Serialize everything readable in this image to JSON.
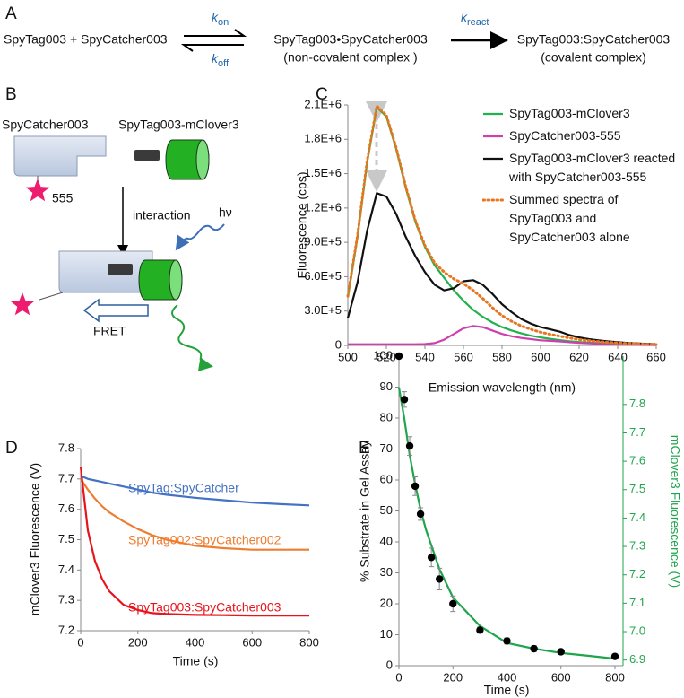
{
  "panel_labels": [
    "A",
    "B",
    "C",
    "D",
    "E"
  ],
  "scheme": {
    "reactants": "SpyTag003 + SpyCatcher003",
    "k_on": {
      "symbol": "k",
      "sub": "on"
    },
    "k_off": {
      "symbol": "k",
      "sub": "off"
    },
    "k_react": {
      "symbol": "k",
      "sub": "react"
    },
    "noncovalent": "SpyTag003•SpyCatcher003",
    "noncovalent_note": "(non-covalent complex )",
    "covalent": "SpyTag003:SpyCatcher003",
    "covalent_note": "(covalent complex)"
  },
  "diagram": {
    "catcher_label": "SpyCatcher003",
    "tag_label": "SpyTag003-mClover3",
    "dye": "555",
    "step": "interaction",
    "light": "hν",
    "fret": "FRET"
  },
  "chart_data": [
    {
      "type": "line",
      "xlabel": "Emission wavelength (nm)",
      "ylabel": "Fluorescence (cps)",
      "x": [
        500,
        505,
        510,
        515,
        520,
        525,
        530,
        535,
        540,
        545,
        550,
        555,
        560,
        565,
        570,
        575,
        580,
        585,
        590,
        595,
        600,
        605,
        610,
        615,
        620,
        625,
        630,
        635,
        640,
        645,
        650,
        655,
        660
      ],
      "series": [
        {
          "name": "SpyTag003-mClover3",
          "color": "#22b14c",
          "style": "solid",
          "values": [
            420000,
            950000,
            1600000,
            2080000,
            2000000,
            1720000,
            1380000,
            1080000,
            860000,
            700000,
            590000,
            480000,
            390000,
            310000,
            250000,
            200000,
            160000,
            130000,
            105000,
            85000,
            70000,
            57000,
            46000,
            37000,
            30000,
            24000,
            20000,
            16000,
            13000,
            10000,
            8000,
            6000,
            5000
          ]
        },
        {
          "name": "SpyCatcher003-555",
          "color": "#cf3fae",
          "style": "solid",
          "values": [
            10000,
            10000,
            10000,
            10000,
            10000,
            10000,
            10000,
            10000,
            12000,
            20000,
            50000,
            100000,
            150000,
            170000,
            160000,
            130000,
            100000,
            80000,
            65000,
            55000,
            45000,
            40000,
            35000,
            28000,
            22000,
            18000,
            14000,
            11000,
            9000,
            7000,
            5000,
            4000,
            3000
          ]
        },
        {
          "name": "SpyTag003-mClover3 reacted with SpyCatcher003-555",
          "color": "#111111",
          "style": "solid",
          "values": [
            240000,
            550000,
            1000000,
            1330000,
            1300000,
            1150000,
            950000,
            780000,
            640000,
            530000,
            480000,
            500000,
            560000,
            570000,
            530000,
            450000,
            360000,
            290000,
            230000,
            190000,
            160000,
            140000,
            120000,
            90000,
            70000,
            55000,
            45000,
            35000,
            28000,
            22000,
            18000,
            14000,
            11000
          ]
        },
        {
          "name": "Summed spectra of SpyTag003 and SpyCatcher003 alone",
          "color": "#e8761e",
          "style": "dotted",
          "values": [
            430000,
            960000,
            1610000,
            2090000,
            2010000,
            1730000,
            1390000,
            1090000,
            872000,
            720000,
            640000,
            580000,
            540000,
            480000,
            410000,
            330000,
            260000,
            210000,
            170000,
            140000,
            115000,
            97000,
            81000,
            65000,
            52000,
            42000,
            34000,
            27000,
            22000,
            17000,
            13000,
            10000,
            8000
          ]
        }
      ],
      "xlim": [
        500,
        660
      ],
      "xticks": [
        500,
        520,
        540,
        560,
        580,
        600,
        620,
        640,
        660
      ],
      "ylim": [
        0,
        2100000
      ],
      "yticks": [
        0,
        {
          "value": 300000,
          "label": "3.0E+5"
        },
        {
          "value": 600000,
          "label": "6.0E+5"
        },
        {
          "value": 900000,
          "label": "9.0E+5"
        },
        {
          "value": 1200000,
          "label": "1.2E+6"
        },
        {
          "value": 1500000,
          "label": "1.5E+6"
        },
        {
          "value": 1800000,
          "label": "1.8E+6"
        },
        {
          "value": 2100000,
          "label": "2.1E+6"
        }
      ],
      "legend": "upper right"
    },
    {
      "type": "line",
      "xlabel": "Time (s)",
      "ylabel": "mClover3 Fluorescence (V)",
      "x": [
        0,
        25,
        50,
        75,
        100,
        150,
        200,
        250,
        300,
        400,
        500,
        600,
        700,
        800
      ],
      "series": [
        {
          "name": "SpyTag:SpyCatcher",
          "color": "#4472c4",
          "style": "solid",
          "values": [
            7.71,
            7.7,
            7.695,
            7.69,
            7.685,
            7.675,
            7.665,
            7.655,
            7.648,
            7.638,
            7.63,
            7.622,
            7.617,
            7.613
          ]
        },
        {
          "name": "SpyTag002:SpyCatcher002",
          "color": "#ed7d31",
          "style": "solid",
          "values": [
            7.7,
            7.665,
            7.635,
            7.61,
            7.59,
            7.56,
            7.535,
            7.515,
            7.5,
            7.48,
            7.472,
            7.467,
            7.467,
            7.467
          ]
        },
        {
          "name": "SpyTag003:SpyCatcher003",
          "color": "#e8141c",
          "style": "solid",
          "values": [
            7.74,
            7.53,
            7.43,
            7.37,
            7.33,
            7.285,
            7.268,
            7.258,
            7.255,
            7.252,
            7.251,
            7.25,
            7.25,
            7.25
          ]
        }
      ],
      "xlim": [
        0,
        800
      ],
      "xticks": [
        0,
        200,
        400,
        600,
        800
      ],
      "ylim": [
        7.2,
        7.8
      ],
      "yticks": [
        7.2,
        7.3,
        7.4,
        7.5,
        7.6,
        7.7,
        7.8
      ]
    },
    {
      "type": "scatter",
      "xlabel": "Time (s)",
      "ylabel": "% Substrate in Gel Assay",
      "y2label": "mClover3 Fluorescence (V)",
      "series": [
        {
          "type": "scatter",
          "color": "#000000",
          "x": [
            0,
            20,
            40,
            60,
            80,
            120,
            150,
            200,
            300,
            400,
            500,
            600,
            800
          ],
          "values": [
            100,
            86,
            71,
            58,
            49,
            35,
            28,
            20,
            11.5,
            8,
            5.5,
            4.5,
            3
          ],
          "errors": [
            0,
            2.5,
            3,
            3,
            2,
            3,
            3.5,
            2.5,
            1,
            1,
            1,
            0.5,
            0.5
          ]
        },
        {
          "type": "line",
          "axis": "y2",
          "color": "#1fa54c",
          "style": "solid",
          "x": [
            0,
            20,
            40,
            60,
            80,
            100,
            150,
            200,
            300,
            400,
            500,
            600,
            700,
            800
          ],
          "values": [
            7.86,
            7.75,
            7.62,
            7.52,
            7.43,
            7.36,
            7.22,
            7.12,
            7.02,
            6.96,
            6.94,
            6.925,
            6.915,
            6.905
          ]
        }
      ],
      "xlim": [
        0,
        800
      ],
      "xticks": [
        0,
        200,
        400,
        600,
        800
      ],
      "ylim": [
        0,
        100
      ],
      "yticks": [
        0,
        10,
        20,
        30,
        40,
        50,
        60,
        70,
        80,
        90,
        100
      ],
      "y2lim": [
        6.88,
        7.97
      ],
      "y2ticks": [
        6.9,
        {
          "value": 7,
          "label": "7.0"
        },
        7.1,
        7.2,
        7.3,
        7.4,
        7.5,
        7.6,
        7.7,
        7.8
      ]
    }
  ]
}
